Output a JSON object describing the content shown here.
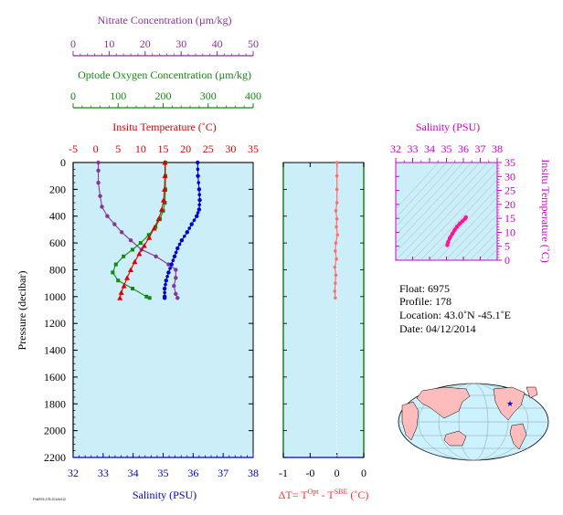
{
  "chart_data": [
    {
      "type": "line",
      "name": "main-profile",
      "ylabel": "Pressure (decibar)",
      "yticks": [
        "0",
        "200",
        "400",
        "600",
        "800",
        "1000",
        "1200",
        "1400",
        "1600",
        "1800",
        "2000",
        "2200"
      ],
      "ylim": [
        0,
        2200
      ],
      "y_reversed": true,
      "background": "#cceef8",
      "axes": {
        "nitrate": {
          "label": "Nitrate Concentration (µm/kg)",
          "ticks": [
            "0",
            "10",
            "20",
            "30",
            "40",
            "50"
          ],
          "range": [
            0,
            50
          ],
          "color": "#883399"
        },
        "oxygen": {
          "label": "Optode Oxygen Concentration (µm/kg)",
          "ticks": [
            "0",
            "100",
            "200",
            "300",
            "400"
          ],
          "range": [
            0,
            400
          ],
          "color": "#118811"
        },
        "temperature": {
          "label": "Insitu Temperature (˚C)",
          "ticks": [
            "-5",
            "0",
            "5",
            "10",
            "15",
            "20",
            "25",
            "30",
            "35"
          ],
          "range": [
            -5,
            35
          ],
          "color": "#dd0000"
        },
        "salinity": {
          "label": "Salinity (PSU)",
          "ticks": [
            "32",
            "33",
            "34",
            "35",
            "36",
            "37",
            "38"
          ],
          "range": [
            32,
            38
          ],
          "color": "#0000cc"
        }
      },
      "series": [
        {
          "name": "Nitrate",
          "axis": "nitrate",
          "color": "#883399",
          "points": [
            [
              7,
              0
            ],
            [
              7,
              60
            ],
            [
              7,
              150
            ],
            [
              7.5,
              250
            ],
            [
              8,
              330
            ],
            [
              9.5,
              400
            ],
            [
              11.5,
              460
            ],
            [
              13.5,
              520
            ],
            [
              16,
              580
            ],
            [
              19,
              650
            ],
            [
              23,
              700
            ],
            [
              26.5,
              760
            ],
            [
              28.5,
              800
            ],
            [
              28.5,
              860
            ],
            [
              28,
              920
            ],
            [
              28.5,
              980
            ],
            [
              29,
              1010
            ]
          ]
        },
        {
          "name": "Optode Oxygen",
          "axis": "oxygen",
          "color": "#118811",
          "points": [
            [
              205,
              0
            ],
            [
              205,
              100
            ],
            [
              205,
              200
            ],
            [
              204,
              300
            ],
            [
              200,
              360
            ],
            [
              193,
              420
            ],
            [
              183,
              480
            ],
            [
              168,
              540
            ],
            [
              150,
              600
            ],
            [
              132,
              650
            ],
            [
              112,
              700
            ],
            [
              95,
              760
            ],
            [
              88,
              820
            ],
            [
              100,
              880
            ],
            [
              132,
              940
            ],
            [
              163,
              1000
            ],
            [
              170,
              1010
            ]
          ]
        },
        {
          "name": "Insitu Temperature",
          "axis": "temperature",
          "color": "#dd0000",
          "points": [
            [
              15.4,
              0
            ],
            [
              15.4,
              100
            ],
            [
              15.3,
              200
            ],
            [
              15.1,
              280
            ],
            [
              14.7,
              350
            ],
            [
              14,
              420
            ],
            [
              13,
              490
            ],
            [
              11.9,
              560
            ],
            [
              10.8,
              620
            ],
            [
              9.7,
              680
            ],
            [
              8.7,
              740
            ],
            [
              7.8,
              800
            ],
            [
              7,
              860
            ],
            [
              6.3,
              920
            ],
            [
              5.7,
              970
            ],
            [
              5.4,
              1010
            ]
          ]
        },
        {
          "name": "Salinity",
          "axis": "salinity",
          "color": "#0000cc",
          "points": [
            [
              36.15,
              0
            ],
            [
              36.16,
              100
            ],
            [
              36.2,
              200
            ],
            [
              36.22,
              280
            ],
            [
              36.2,
              350
            ],
            [
              36.12,
              400
            ],
            [
              35.95,
              460
            ],
            [
              35.8,
              520
            ],
            [
              35.62,
              580
            ],
            [
              35.48,
              640
            ],
            [
              35.38,
              700
            ],
            [
              35.28,
              760
            ],
            [
              35.18,
              820
            ],
            [
              35.1,
              880
            ],
            [
              35.05,
              940
            ],
            [
              35.05,
              1000
            ],
            [
              35.05,
              1010
            ]
          ]
        }
      ]
    },
    {
      "type": "line",
      "name": "delta-t-profile",
      "xlabel_parts": [
        "ΔT= T",
        "Opt",
        " - T",
        "SBE",
        " (˚C)"
      ],
      "xticks": [
        "-1",
        "-0",
        "0",
        "0"
      ],
      "xtick_values": [
        -1,
        -0.5,
        0,
        0.5
      ],
      "xlim": [
        -1,
        0.5
      ],
      "ylim": [
        0,
        2200
      ],
      "y_reversed": true,
      "color": "#ff6f6f",
      "points": [
        [
          0,
          0
        ],
        [
          0,
          100
        ],
        [
          0,
          200
        ],
        [
          0,
          300
        ],
        [
          -0.02,
          360
        ],
        [
          0,
          420
        ],
        [
          -0.01,
          480
        ],
        [
          0.01,
          540
        ],
        [
          -0.02,
          600
        ],
        [
          -0.03,
          660
        ],
        [
          -0.01,
          720
        ],
        [
          -0.04,
          780
        ],
        [
          -0.02,
          840
        ],
        [
          -0.03,
          900
        ],
        [
          -0.04,
          960
        ],
        [
          -0.03,
          1010
        ]
      ]
    },
    {
      "type": "line",
      "name": "ts-diagram",
      "xlabel": "Salinity (PSU)",
      "ylabel": "Insitu Temperature (˚C)",
      "xticks": [
        "32",
        "33",
        "34",
        "35",
        "36",
        "37",
        "38"
      ],
      "xlim": [
        32,
        38
      ],
      "yticks": [
        "0",
        "5",
        "10",
        "15",
        "20",
        "25",
        "30",
        "35"
      ],
      "ylim": [
        0,
        35
      ],
      "axis_color": "#cc00cc",
      "line_color": "#ff1493",
      "points": [
        [
          35.05,
          5.4
        ],
        [
          35.1,
          6.5
        ],
        [
          35.2,
          8
        ],
        [
          35.35,
          9.5
        ],
        [
          35.48,
          10.8
        ],
        [
          35.62,
          12
        ],
        [
          35.8,
          13.2
        ],
        [
          35.95,
          14
        ],
        [
          36.1,
          14.9
        ],
        [
          36.15,
          15.4
        ]
      ]
    }
  ],
  "info": {
    "float": "Float:  6975",
    "profile": "Profile:  178",
    "location": "Location:  43.0˚N  -45.1˚E",
    "date": "Date:  04/12/2014"
  },
  "footnote": "FN6975-178 20140412",
  "map": {
    "water": "#ccf2ff",
    "land": "#ffbcbc",
    "marker_color": "#0000ff"
  }
}
